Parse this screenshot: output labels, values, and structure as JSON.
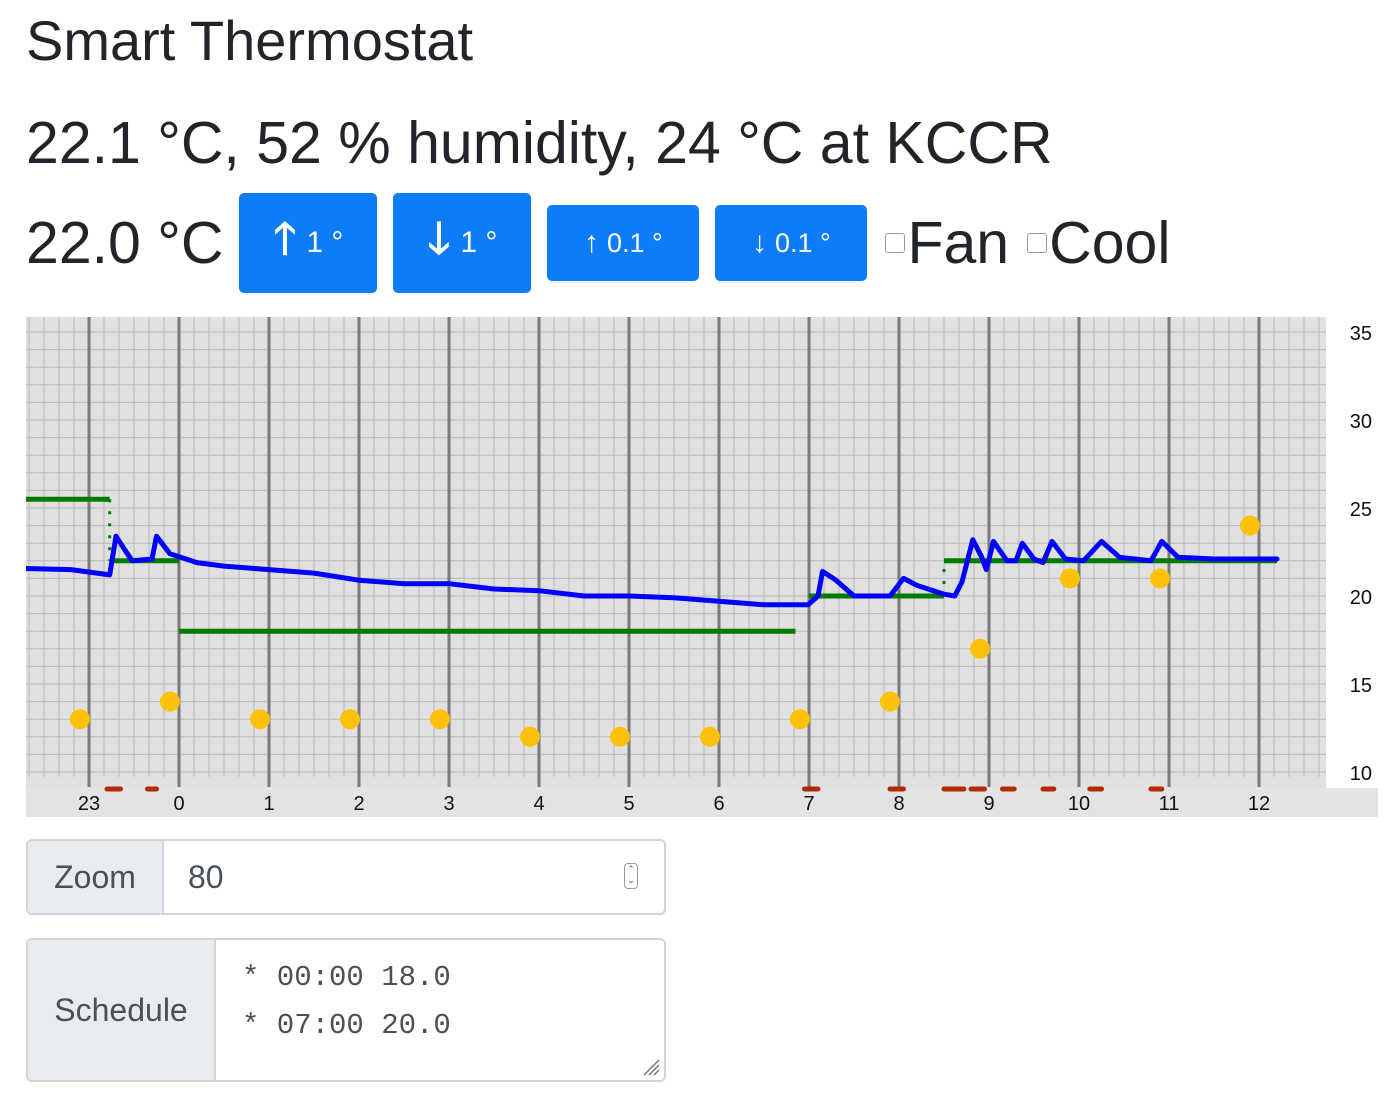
{
  "title": "Smart Thermostat",
  "status_line": "22.1 °C, 52 % humidity, 24 °C at KCCR",
  "setpoint": "22.0 °C",
  "buttons": {
    "up_1": {
      "arrow": "🡑",
      "label": "1 °"
    },
    "down_1": {
      "arrow": "🡓",
      "label": "1 °"
    },
    "up_01": {
      "arrow": "↑",
      "label": "0.1 °"
    },
    "down_01": {
      "arrow": "↓",
      "label": "0.1 °"
    }
  },
  "checkboxes": {
    "fan": {
      "label": "Fan",
      "checked": false
    },
    "cool": {
      "label": "Cool",
      "checked": false
    }
  },
  "zoom": {
    "label": "Zoom",
    "value": "80"
  },
  "schedule": {
    "label": "Schedule",
    "lines": [
      "* 00:00 18.0",
      "* 07:00 20.0"
    ]
  },
  "colors": {
    "chart_bg": "#e0e0e0",
    "indoor_temp": "#0000ff",
    "setpoint": "#007a00",
    "outdoor_temp": "#ffc107",
    "hvac_active": "#b22a00",
    "button": "#0d7cf6"
  },
  "chart_data": {
    "type": "line",
    "x_unit": "hour of day",
    "ylim": [
      9,
      36
    ],
    "y_ticks": [
      10,
      15,
      20,
      25,
      30,
      35
    ],
    "x_ticks": [
      {
        "hour": -1,
        "label": "23"
      },
      {
        "hour": 0,
        "label": "0"
      },
      {
        "hour": 1,
        "label": "1"
      },
      {
        "hour": 2,
        "label": "2"
      },
      {
        "hour": 3,
        "label": "3"
      },
      {
        "hour": 4,
        "label": "4"
      },
      {
        "hour": 5,
        "label": "5"
      },
      {
        "hour": 6,
        "label": "6"
      },
      {
        "hour": 7,
        "label": "7"
      },
      {
        "hour": 8,
        "label": "8"
      },
      {
        "hour": 9,
        "label": "9"
      },
      {
        "hour": 10,
        "label": "10"
      },
      {
        "hour": 11,
        "label": "11"
      },
      {
        "hour": 12,
        "label": "12"
      }
    ],
    "grid": true,
    "series": [
      {
        "kind": "indoor",
        "points": [
          [
            -2.0,
            21.6
          ],
          [
            -1.2,
            21.5
          ],
          [
            -0.77,
            21.2
          ],
          [
            -0.7,
            23.4
          ],
          [
            -0.6,
            22.6
          ],
          [
            -0.52,
            22.0
          ],
          [
            -0.3,
            22.1
          ],
          [
            -0.25,
            23.4
          ],
          [
            -0.1,
            22.4
          ],
          [
            0.2,
            21.9
          ],
          [
            0.5,
            21.7
          ],
          [
            1.0,
            21.5
          ],
          [
            1.5,
            21.3
          ],
          [
            2.0,
            20.9
          ],
          [
            2.5,
            20.7
          ],
          [
            3.0,
            20.7
          ],
          [
            3.5,
            20.4
          ],
          [
            4.0,
            20.3
          ],
          [
            4.5,
            20.0
          ],
          [
            5.0,
            20.0
          ],
          [
            5.5,
            19.9
          ],
          [
            6.0,
            19.7
          ],
          [
            6.5,
            19.5
          ],
          [
            6.99,
            19.5
          ],
          [
            7.1,
            20.0
          ],
          [
            7.15,
            21.4
          ],
          [
            7.3,
            20.9
          ],
          [
            7.5,
            20.0
          ],
          [
            7.9,
            20.0
          ],
          [
            8.05,
            21.0
          ],
          [
            8.2,
            20.6
          ],
          [
            8.5,
            20.1
          ],
          [
            8.62,
            20.0
          ],
          [
            8.7,
            20.8
          ],
          [
            8.82,
            23.2
          ],
          [
            8.92,
            22.2
          ],
          [
            8.97,
            21.5
          ],
          [
            9.05,
            23.1
          ],
          [
            9.2,
            22.0
          ],
          [
            9.3,
            22.0
          ],
          [
            9.37,
            23.0
          ],
          [
            9.5,
            22.1
          ],
          [
            9.6,
            21.9
          ],
          [
            9.7,
            23.1
          ],
          [
            9.85,
            22.1
          ],
          [
            10.05,
            22.0
          ],
          [
            10.25,
            23.1
          ],
          [
            10.45,
            22.2
          ],
          [
            10.8,
            22.0
          ],
          [
            10.92,
            23.1
          ],
          [
            11.1,
            22.2
          ],
          [
            11.5,
            22.1
          ],
          [
            12.2,
            22.1
          ]
        ]
      },
      {
        "kind": "setpoint",
        "segments": [
          [
            -2.0,
            25.5,
            -0.77,
            25.5
          ],
          [
            -0.77,
            22.0,
            0.0,
            22.0
          ],
          [
            0.0,
            18.0,
            6.85,
            18.0
          ],
          [
            7.0,
            20.0,
            8.5,
            20.0
          ],
          [
            8.5,
            22.0,
            12.2,
            22.0
          ]
        ]
      },
      {
        "kind": "outdoor",
        "points": [
          [
            -1.1,
            13
          ],
          [
            -0.1,
            14
          ],
          [
            0.9,
            13
          ],
          [
            1.9,
            13
          ],
          [
            2.9,
            13
          ],
          [
            3.9,
            12
          ],
          [
            4.9,
            12
          ],
          [
            5.9,
            12
          ],
          [
            6.9,
            13
          ],
          [
            7.9,
            14
          ],
          [
            8.9,
            17
          ],
          [
            9.9,
            21
          ],
          [
            10.9,
            21
          ],
          [
            11.9,
            24
          ]
        ]
      },
      {
        "kind": "hvac",
        "segments": [
          [
            -0.8,
            -0.65
          ],
          [
            -0.35,
            -0.25
          ],
          [
            6.95,
            7.1
          ],
          [
            7.9,
            8.05
          ],
          [
            8.5,
            8.72
          ],
          [
            8.8,
            8.95
          ],
          [
            9.15,
            9.28
          ],
          [
            9.6,
            9.72
          ],
          [
            10.12,
            10.25
          ],
          [
            10.8,
            10.92
          ]
        ]
      }
    ]
  }
}
